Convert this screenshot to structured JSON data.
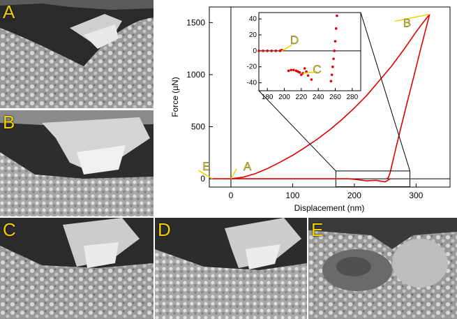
{
  "panels": {
    "A": {
      "label": "A"
    },
    "B": {
      "label": "B"
    },
    "C": {
      "label": "C"
    },
    "D": {
      "label": "D"
    },
    "E": {
      "label": "E"
    }
  },
  "chart_data": {
    "type": "line",
    "title": "",
    "xlabel": "Displacement (nm)",
    "ylabel": "Force (µN)",
    "xlim": [
      -35,
      355
    ],
    "ylim": [
      -80,
      1650
    ],
    "xticks": [
      0,
      100,
      200,
      300
    ],
    "yticks": [
      0,
      500,
      1000,
      1500
    ],
    "series": [
      {
        "x": [
          -30,
          -20,
          -10,
          0,
          5,
          10
        ],
        "y": [
          0,
          0,
          0,
          0,
          0,
          2
        ]
      },
      {
        "x": [
          0,
          20,
          40,
          60,
          80,
          100,
          120,
          140,
          160,
          180,
          200,
          220,
          240,
          260,
          280,
          300,
          310,
          322
        ],
        "y": [
          0,
          15,
          50,
          100,
          160,
          225,
          300,
          380,
          470,
          570,
          680,
          800,
          940,
          1080,
          1240,
          1410,
          1490,
          1580
        ]
      },
      {
        "x": [
          322,
          315,
          305,
          295,
          285,
          275,
          268,
          262,
          258,
          255,
          252
        ],
        "y": [
          1580,
          1420,
          1190,
          950,
          720,
          480,
          310,
          160,
          60,
          10,
          0
        ]
      },
      {
        "x": [
          10,
          40,
          80,
          120,
          160,
          190,
          200,
          220,
          235,
          250,
          258
        ],
        "y": [
          0,
          0,
          0,
          0,
          0,
          0,
          -5,
          -20,
          -15,
          -30,
          0
        ]
      }
    ],
    "inset": {
      "xlim": [
        170,
        290
      ],
      "ylim": [
        -50,
        48
      ],
      "xticks": [
        180,
        200,
        220,
        240,
        260,
        280
      ],
      "yticks": [
        40,
        20,
        0,
        -20,
        -40
      ],
      "series": [
        {
          "x": [
            170,
            175,
            180,
            185,
            190,
            195,
            197
          ],
          "y": [
            0,
            0,
            0,
            0,
            0,
            0,
            1
          ]
        },
        {
          "x": [
            205,
            208,
            211,
            214,
            216,
            218,
            220,
            222
          ],
          "y": [
            -25,
            -24,
            -24,
            -25,
            -26,
            -27,
            -30,
            -28
          ]
        },
        {
          "x": [
            224,
            226,
            228,
            232
          ],
          "y": [
            -22,
            -26,
            -31,
            -36
          ]
        },
        {
          "x": [
            255,
            256,
            257,
            258,
            259,
            260,
            261,
            262
          ],
          "y": [
            -38,
            -30,
            -20,
            -10,
            0,
            12,
            28,
            44
          ]
        }
      ]
    },
    "annotations": [
      {
        "text": "A",
        "x": 0,
        "y": 0
      },
      {
        "text": "B",
        "x": 322,
        "y": 1580
      },
      {
        "text": "E",
        "x": -30,
        "y": 0
      },
      {
        "text": "C",
        "x": 222,
        "y": -28
      },
      {
        "text": "D",
        "x": 197,
        "y": 0
      }
    ]
  }
}
